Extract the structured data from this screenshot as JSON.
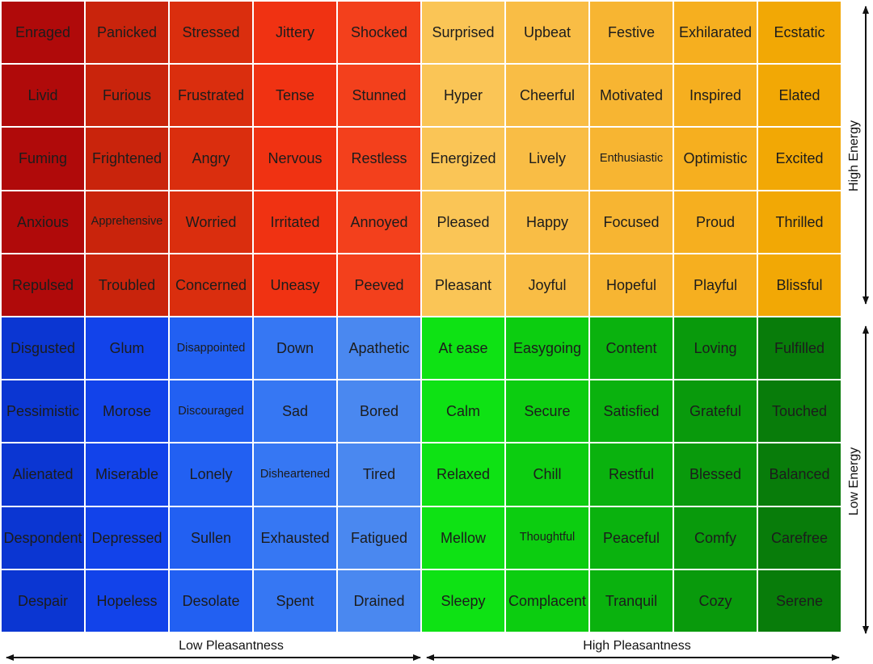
{
  "mood_meter": {
    "rows": [
      [
        "Enraged",
        "Panicked",
        "Stressed",
        "Jittery",
        "Shocked",
        "Surprised",
        "Upbeat",
        "Festive",
        "Exhilarated",
        "Ecstatic"
      ],
      [
        "Livid",
        "Furious",
        "Frustrated",
        "Tense",
        "Stunned",
        "Hyper",
        "Cheerful",
        "Motivated",
        "Inspired",
        "Elated"
      ],
      [
        "Fuming",
        "Frightened",
        "Angry",
        "Nervous",
        "Restless",
        "Energized",
        "Lively",
        "Enthusiastic",
        "Optimistic",
        "Excited"
      ],
      [
        "Anxious",
        "Apprehensive",
        "Worried",
        "Irritated",
        "Annoyed",
        "Pleased",
        "Happy",
        "Focused",
        "Proud",
        "Thrilled"
      ],
      [
        "Repulsed",
        "Troubled",
        "Concerned",
        "Uneasy",
        "Peeved",
        "Pleasant",
        "Joyful",
        "Hopeful",
        "Playful",
        "Blissful"
      ],
      [
        "Disgusted",
        "Glum",
        "Disappointed",
        "Down",
        "Apathetic",
        "At ease",
        "Easygoing",
        "Content",
        "Loving",
        "Fulfilled"
      ],
      [
        "Pessimistic",
        "Morose",
        "Discouraged",
        "Sad",
        "Bored",
        "Calm",
        "Secure",
        "Satisfied",
        "Grateful",
        "Touched"
      ],
      [
        "Alienated",
        "Miserable",
        "Lonely",
        "Disheartened",
        "Tired",
        "Relaxed",
        "Chill",
        "Restful",
        "Blessed",
        "Balanced"
      ],
      [
        "Despondent",
        "Depressed",
        "Sullen",
        "Exhausted",
        "Fatigued",
        "Mellow",
        "Thoughtful",
        "Peaceful",
        "Comfy",
        "Carefree"
      ],
      [
        "Despair",
        "Hopeless",
        "Desolate",
        "Spent",
        "Drained",
        "Sleepy",
        "Complacent",
        "Tranquil",
        "Cozy",
        "Serene"
      ]
    ],
    "quadrant_colors": {
      "red": [
        "#b00a0a",
        "#c9240c",
        "#da2e0e",
        "#f03212",
        "#f3401c"
      ],
      "yellow": [
        "#fac556",
        "#f9bd45",
        "#f7b532",
        "#f6af1f",
        "#f2a805"
      ],
      "blue": [
        "#0b36d2",
        "#1243ea",
        "#2260f2",
        "#3677f3",
        "#4a88f0"
      ],
      "green": [
        "#0ee214",
        "#0ccd10",
        "#0ab20e",
        "#099a0c",
        "#087c0a"
      ]
    },
    "axis": {
      "high_energy": "High Energy",
      "low_energy": "Low Energy",
      "low_pleasantness": "Low Pleasantness",
      "high_pleasantness": "High Pleasantness"
    }
  }
}
